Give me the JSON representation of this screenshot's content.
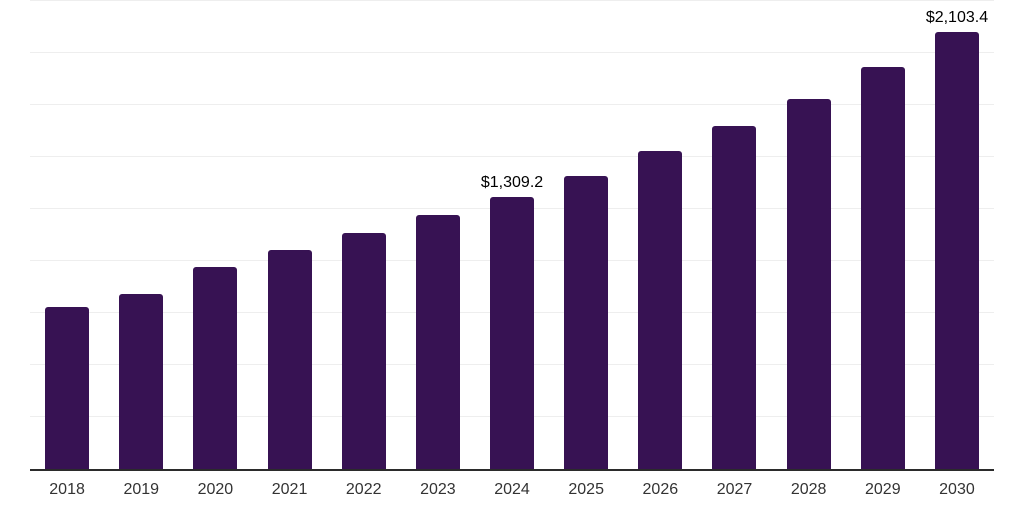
{
  "chart_data": {
    "type": "bar",
    "title": "",
    "xlabel": "",
    "ylabel": "",
    "categories": [
      "2018",
      "2019",
      "2020",
      "2021",
      "2022",
      "2023",
      "2024",
      "2025",
      "2026",
      "2027",
      "2028",
      "2029",
      "2030"
    ],
    "values": [
      781,
      843,
      970,
      1055,
      1135,
      1220,
      1309.2,
      1409,
      1528,
      1648,
      1780,
      1932,
      2103.4
    ],
    "data_labels": [
      "",
      "",
      "",
      "",
      "",
      "",
      "$1,309.2",
      "",
      "",
      "",
      "",
      "",
      "$2,103.4"
    ],
    "ylim": [
      0,
      2250
    ],
    "gridline_step": 250,
    "grid": true,
    "legend": false,
    "legend_position": "none",
    "colors": {
      "bar": "#371253",
      "axis_line": "#2b2b2b",
      "gridline": "#eeeeee",
      "value_label": "#000000",
      "tick_label": "#333333",
      "background": "#ffffff"
    }
  }
}
